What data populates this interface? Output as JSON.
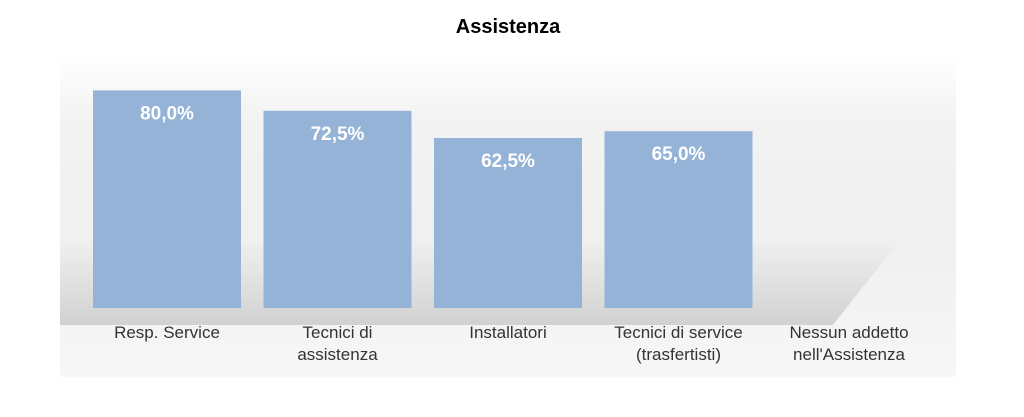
{
  "chart_data": {
    "type": "bar",
    "title": "Assistenza",
    "categories": [
      "Resp. Service",
      "Tecnici di assistenza",
      "Installatori",
      "Tecnici di service (trasfertisti)",
      "Nessun addetto nell'Assistenza"
    ],
    "category_lines": [
      [
        "Resp. Service"
      ],
      [
        "Tecnici di",
        "assistenza"
      ],
      [
        "Installatori"
      ],
      [
        "Tecnici di service",
        "(trasfertisti)"
      ],
      [
        "Nessun addetto",
        "nell'Assistenza"
      ]
    ],
    "values": [
      80.0,
      72.5,
      62.5,
      65.0,
      0
    ],
    "data_labels": [
      "80,0%",
      "72,5%",
      "62,5%",
      "65,0%",
      ""
    ],
    "ylim": [
      0,
      100
    ],
    "xlabel": "",
    "ylabel": "",
    "grid": false,
    "bar_color": "#95b3d7",
    "label_color": "#ffffff"
  }
}
